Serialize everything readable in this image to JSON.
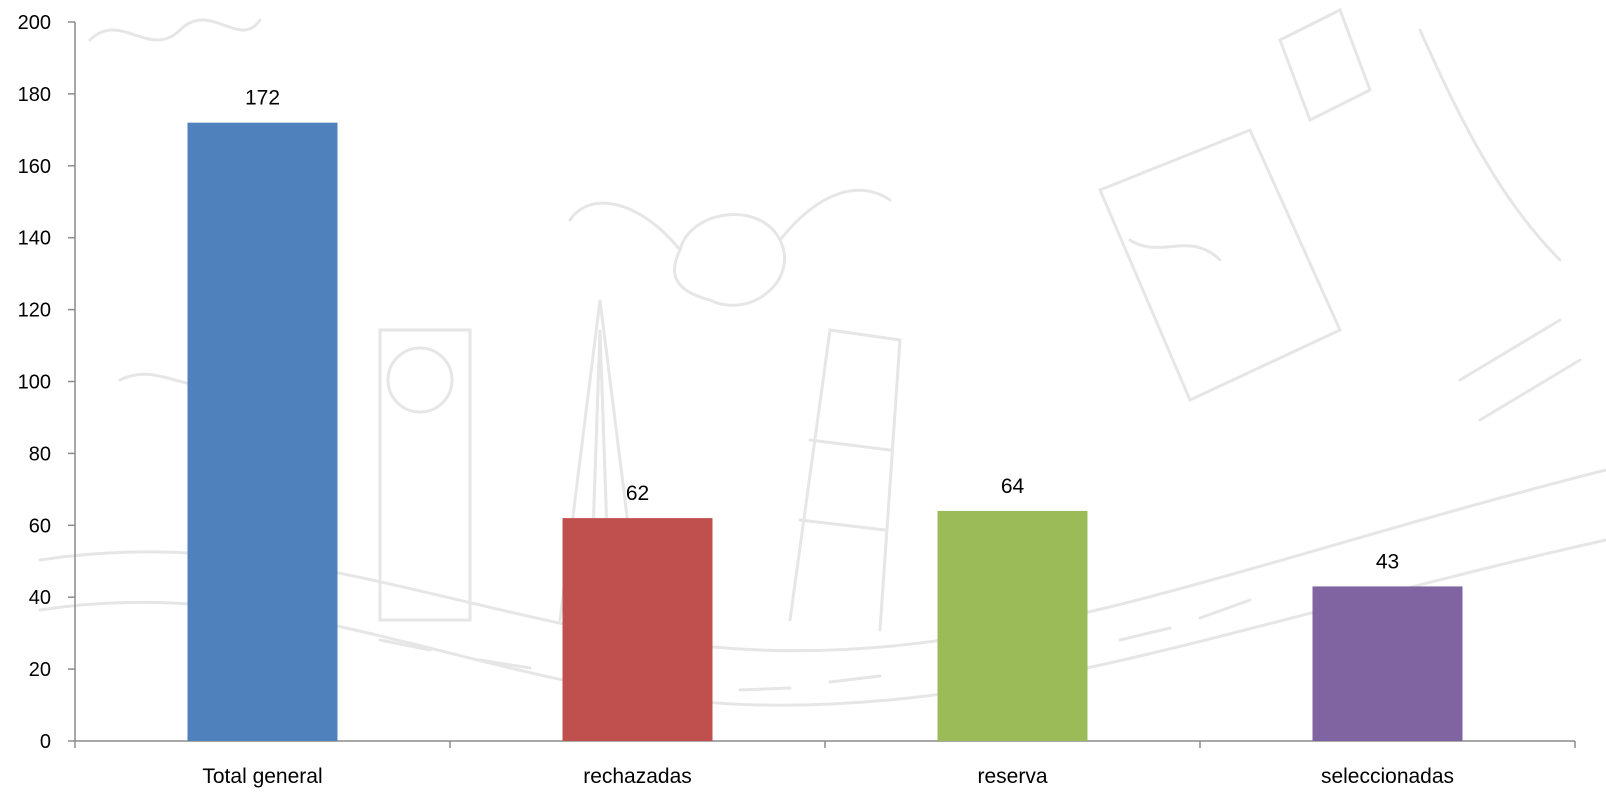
{
  "chart_data": {
    "type": "bar",
    "title": "",
    "xlabel": "",
    "ylabel": "",
    "categories": [
      "Total general",
      "rechazadas",
      "reserva",
      "seleccionadas"
    ],
    "values": [
      172,
      62,
      64,
      43
    ],
    "colors": [
      "#4f81bd",
      "#c0504d",
      "#9bbb59",
      "#8064a2"
    ],
    "ylim": [
      0,
      200
    ],
    "yticks": [
      0,
      20,
      40,
      60,
      80,
      100,
      120,
      140,
      160,
      180,
      200
    ],
    "grid": false,
    "legend": "none",
    "data_labels": true
  }
}
